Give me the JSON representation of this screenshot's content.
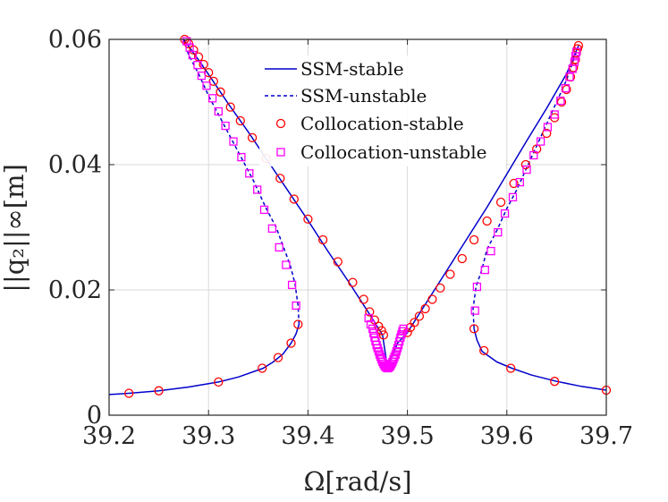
{
  "chart_data": {
    "type": "line",
    "xlabel": "Ω[rad/s]",
    "ylabel": "||q₂||∞[m]",
    "xlim": [
      39.2,
      39.7
    ],
    "ylim": [
      0,
      0.06
    ],
    "xticks": [
      39.2,
      39.3,
      39.4,
      39.5,
      39.6,
      39.7
    ],
    "xtick_labels": [
      "39.2",
      "39.3",
      "39.4",
      "39.5",
      "39.6",
      "39.7"
    ],
    "yticks": [
      0,
      0.02,
      0.04,
      0.06
    ],
    "ytick_labels": [
      "0",
      "0.02",
      "0.04",
      "0.06"
    ],
    "grid": true,
    "legend_position": "top-center",
    "colors": {
      "ssm": "#0000cc",
      "collocation_stable": "#ff0000",
      "collocation_unstable": "#ff00ff",
      "grid": "#d9d9d9"
    },
    "series": [
      {
        "name": "SSM-stable",
        "style": "solid",
        "segments": [
          [
            [
              39.2,
              0.0033
            ],
            [
              39.22,
              0.0035
            ],
            [
              39.25,
              0.0039
            ],
            [
              39.28,
              0.0045
            ],
            [
              39.31,
              0.0053
            ],
            [
              39.33,
              0.0061
            ],
            [
              39.355,
              0.0075
            ],
            [
              39.365,
              0.0085
            ],
            [
              39.375,
              0.0098
            ],
            [
              39.383,
              0.0115
            ],
            [
              39.388,
              0.013
            ],
            [
              39.391,
              0.0145
            ]
          ],
          [
            [
              39.275,
              0.06
            ],
            [
              39.29,
              0.0567
            ],
            [
              39.3,
              0.0544
            ],
            [
              39.32,
              0.0497
            ],
            [
              39.34,
              0.0452
            ],
            [
              39.36,
              0.0405
            ],
            [
              39.38,
              0.0358
            ],
            [
              39.4,
              0.0311
            ],
            [
              39.42,
              0.0262
            ],
            [
              39.44,
              0.0215
            ],
            [
              39.46,
              0.0166
            ],
            [
              39.475,
              0.0128
            ],
            [
              39.48,
              0.0075
            ]
          ],
          [
            [
              39.48,
              0.0075
            ],
            [
              39.49,
              0.0115
            ],
            [
              39.5,
              0.0132
            ],
            [
              39.52,
              0.0182
            ],
            [
              39.54,
              0.0232
            ],
            [
              39.56,
              0.0282
            ],
            [
              39.58,
              0.0332
            ],
            [
              39.6,
              0.0385
            ],
            [
              39.62,
              0.0438
            ],
            [
              39.64,
              0.049
            ],
            [
              39.66,
              0.0545
            ],
            [
              39.672,
              0.059
            ]
          ],
          [
            [
              39.567,
              0.0138
            ],
            [
              39.57,
              0.012
            ],
            [
              39.575,
              0.0102
            ],
            [
              39.59,
              0.0085
            ],
            [
              39.605,
              0.0075
            ],
            [
              39.625,
              0.0064
            ],
            [
              39.65,
              0.0054
            ],
            [
              39.675,
              0.0046
            ],
            [
              39.7,
              0.004
            ]
          ]
        ]
      },
      {
        "name": "SSM-unstable",
        "style": "dashed",
        "segments": [
          [
            [
              39.391,
              0.0145
            ],
            [
              39.39,
              0.0175
            ],
            [
              39.387,
              0.021
            ],
            [
              39.382,
              0.024
            ],
            [
              39.375,
              0.027
            ],
            [
              39.368,
              0.03
            ],
            [
              39.358,
              0.033
            ],
            [
              39.345,
              0.0375
            ],
            [
              39.33,
              0.042
            ],
            [
              39.315,
              0.0465
            ],
            [
              39.3,
              0.051
            ],
            [
              39.29,
              0.0545
            ],
            [
              39.28,
              0.0575
            ],
            [
              39.275,
              0.06
            ]
          ],
          [
            [
              39.567,
              0.0138
            ],
            [
              39.566,
              0.017
            ],
            [
              39.569,
              0.0205
            ],
            [
              39.575,
              0.0233
            ],
            [
              39.58,
              0.0265
            ],
            [
              39.59,
              0.0295
            ],
            [
              39.6,
              0.033
            ],
            [
              39.61,
              0.036
            ],
            [
              39.62,
              0.0395
            ],
            [
              39.63,
              0.043
            ],
            [
              39.64,
              0.0465
            ],
            [
              39.65,
              0.05
            ],
            [
              39.66,
              0.0535
            ],
            [
              39.67,
              0.058
            ]
          ]
        ]
      },
      {
        "name": "Collocation-stable",
        "marker": "circle",
        "points": [
          [
            39.22,
            0.0035
          ],
          [
            39.25,
            0.0039
          ],
          [
            39.31,
            0.0053
          ],
          [
            39.354,
            0.0075
          ],
          [
            39.37,
            0.0092
          ],
          [
            39.383,
            0.0115
          ],
          [
            39.39,
            0.0145
          ],
          [
            39.276,
            0.06
          ],
          [
            39.28,
            0.0593
          ],
          [
            39.285,
            0.0583
          ],
          [
            39.29,
            0.0572
          ],
          [
            39.295,
            0.056
          ],
          [
            39.3,
            0.0547
          ],
          [
            39.305,
            0.0533
          ],
          [
            39.312,
            0.0516
          ],
          [
            39.322,
            0.0492
          ],
          [
            39.332,
            0.047
          ],
          [
            39.344,
            0.0443
          ],
          [
            39.358,
            0.041
          ],
          [
            39.372,
            0.0378
          ],
          [
            39.386,
            0.0345
          ],
          [
            39.4,
            0.0313
          ],
          [
            39.415,
            0.028
          ],
          [
            39.43,
            0.0245
          ],
          [
            39.445,
            0.0212
          ],
          [
            39.456,
            0.0185
          ],
          [
            39.462,
            0.0165
          ],
          [
            39.467,
            0.0152
          ],
          [
            39.471,
            0.0142
          ],
          [
            39.474,
            0.0135
          ],
          [
            39.476,
            0.0128
          ],
          [
            39.5,
            0.0132
          ],
          [
            39.503,
            0.014
          ],
          [
            39.507,
            0.0148
          ],
          [
            39.512,
            0.0158
          ],
          [
            39.518,
            0.017
          ],
          [
            39.525,
            0.0185
          ],
          [
            39.533,
            0.0203
          ],
          [
            39.543,
            0.0225
          ],
          [
            39.555,
            0.025
          ],
          [
            39.567,
            0.028
          ],
          [
            39.58,
            0.031
          ],
          [
            39.594,
            0.034
          ],
          [
            39.607,
            0.037
          ],
          [
            39.619,
            0.04
          ],
          [
            39.63,
            0.0425
          ],
          [
            39.64,
            0.045
          ],
          [
            39.648,
            0.0475
          ],
          [
            39.655,
            0.05
          ],
          [
            39.66,
            0.052
          ],
          [
            39.664,
            0.054
          ],
          [
            39.667,
            0.0555
          ],
          [
            39.669,
            0.0568
          ],
          [
            39.67,
            0.0578
          ],
          [
            39.671,
            0.0585
          ],
          [
            39.672,
            0.059
          ],
          [
            39.567,
            0.0138
          ],
          [
            39.577,
            0.0103
          ],
          [
            39.604,
            0.0075
          ],
          [
            39.648,
            0.0054
          ],
          [
            39.7,
            0.004
          ]
        ]
      },
      {
        "name": "Collocation-unstable",
        "marker": "square",
        "points": [
          [
            39.278,
            0.0597
          ],
          [
            39.281,
            0.0587
          ],
          [
            39.284,
            0.0575
          ],
          [
            39.289,
            0.0559
          ],
          [
            39.293,
            0.0542
          ],
          [
            39.298,
            0.0526
          ],
          [
            39.304,
            0.0506
          ],
          [
            39.31,
            0.0485
          ],
          [
            39.317,
            0.0462
          ],
          [
            39.325,
            0.0437
          ],
          [
            39.333,
            0.0412
          ],
          [
            39.341,
            0.0386
          ],
          [
            39.349,
            0.036
          ],
          [
            39.356,
            0.0328
          ],
          [
            39.364,
            0.0298
          ],
          [
            39.371,
            0.0268
          ],
          [
            39.378,
            0.024
          ],
          [
            39.384,
            0.0208
          ],
          [
            39.388,
            0.0175
          ],
          [
            39.568,
            0.0167
          ],
          [
            39.57,
            0.0205
          ],
          [
            39.578,
            0.0232
          ],
          [
            39.584,
            0.0262
          ],
          [
            39.591,
            0.0292
          ],
          [
            39.598,
            0.0322
          ],
          [
            39.606,
            0.0348
          ],
          [
            39.613,
            0.0372
          ],
          [
            39.62,
            0.0392
          ],
          [
            39.627,
            0.0415
          ],
          [
            39.634,
            0.0437
          ],
          [
            39.641,
            0.046
          ],
          [
            39.648,
            0.048
          ],
          [
            39.654,
            0.0502
          ],
          [
            39.659,
            0.0522
          ],
          [
            39.663,
            0.054
          ],
          [
            39.666,
            0.0553
          ],
          [
            39.668,
            0.0564
          ],
          [
            39.669,
            0.0573
          ],
          [
            39.67,
            0.058
          ],
          [
            39.461,
            0.0155
          ],
          [
            39.463,
            0.0145
          ],
          [
            39.465,
            0.0138
          ],
          [
            39.466,
            0.0131
          ],
          [
            39.467,
            0.0124
          ],
          [
            39.468,
            0.0118
          ],
          [
            39.469,
            0.0112
          ],
          [
            39.47,
            0.0107
          ],
          [
            39.471,
            0.0102
          ],
          [
            39.472,
            0.0097
          ],
          [
            39.473,
            0.0093
          ],
          [
            39.474,
            0.0089
          ],
          [
            39.475,
            0.0085
          ],
          [
            39.476,
            0.0082
          ],
          [
            39.477,
            0.0079
          ],
          [
            39.478,
            0.0077
          ],
          [
            39.479,
            0.0076
          ],
          [
            39.48,
            0.0075
          ],
          [
            39.481,
            0.0076
          ],
          [
            39.482,
            0.0077
          ],
          [
            39.483,
            0.0079
          ],
          [
            39.484,
            0.0082
          ],
          [
            39.485,
            0.0085
          ],
          [
            39.486,
            0.0089
          ],
          [
            39.487,
            0.0093
          ],
          [
            39.488,
            0.0097
          ],
          [
            39.489,
            0.0102
          ],
          [
            39.49,
            0.0107
          ],
          [
            39.491,
            0.0112
          ],
          [
            39.492,
            0.0118
          ],
          [
            39.493,
            0.0124
          ],
          [
            39.494,
            0.0129
          ],
          [
            39.495,
            0.0134
          ],
          [
            39.496,
            0.0138
          ]
        ]
      }
    ],
    "legend": [
      {
        "label": "SSM-stable",
        "kind": "solid"
      },
      {
        "label": "SSM-unstable",
        "kind": "dashed"
      },
      {
        "label": "Collocation-stable",
        "kind": "circle"
      },
      {
        "label": "Collocation-unstable",
        "kind": "square"
      }
    ]
  }
}
